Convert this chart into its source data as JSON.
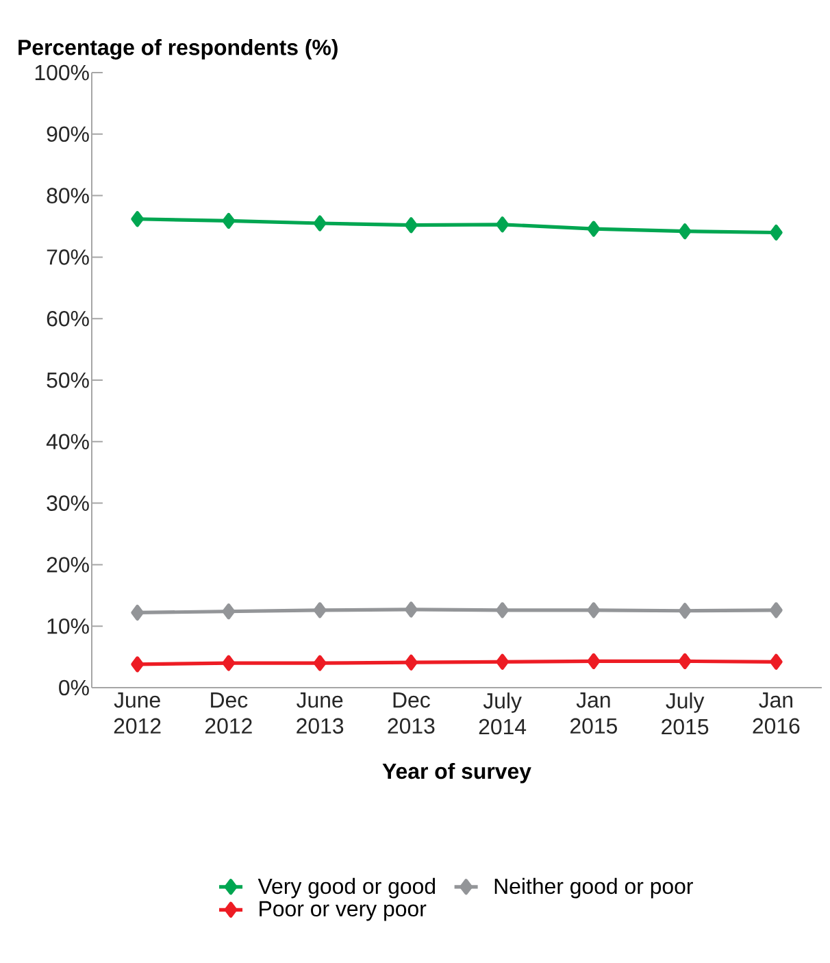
{
  "chart_data": {
    "type": "line",
    "ylabel": "Percentage of respondents (%)",
    "xlabel": "Year of survey",
    "categories": [
      "June 2012",
      "Dec 2012",
      "June 2013",
      "Dec 2013",
      "July 2014",
      "Jan 2015",
      "July 2015",
      "Jan 2016"
    ],
    "series": [
      {
        "name": "Very good or good",
        "color": "#00a651",
        "values": [
          76.2,
          75.9,
          75.5,
          75.2,
          75.3,
          74.6,
          74.2,
          74.0
        ]
      },
      {
        "name": "Neither good or poor",
        "color": "#939598",
        "values": [
          12.2,
          12.4,
          12.6,
          12.7,
          12.6,
          12.6,
          12.5,
          12.6
        ]
      },
      {
        "name": "Poor or very poor",
        "color": "#ed1c24",
        "values": [
          3.8,
          4.0,
          4.0,
          4.1,
          4.2,
          4.3,
          4.3,
          4.2
        ]
      }
    ],
    "ylim": [
      0,
      100
    ],
    "yticks": [
      {
        "value": 0,
        "label": "0%"
      },
      {
        "value": 10,
        "label": "10%"
      },
      {
        "value": 20,
        "label": "20%"
      },
      {
        "value": 30,
        "label": "30%"
      },
      {
        "value": 40,
        "label": "40%"
      },
      {
        "value": 50,
        "label": "50%"
      },
      {
        "value": 60,
        "label": "60%"
      },
      {
        "value": 70,
        "label": "70%"
      },
      {
        "value": 80,
        "label": "80%"
      },
      {
        "value": 90,
        "label": "90%"
      },
      {
        "value": 100,
        "label": "100%"
      }
    ],
    "grid": false,
    "legend": "bottom",
    "marker": "diamond",
    "line_style": "solid"
  }
}
